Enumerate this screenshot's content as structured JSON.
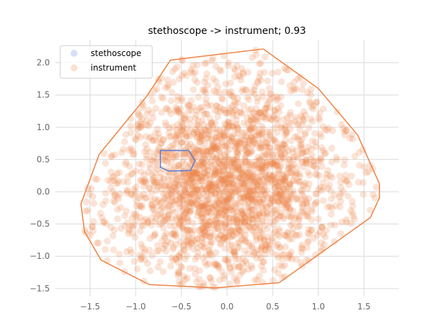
{
  "chart_data": {
    "type": "scatter",
    "title": "stethoscope -> instrument; 0.93",
    "xlabel": "",
    "ylabel": "",
    "xlim": [
      -1.88,
      1.88
    ],
    "ylim": [
      -1.62,
      2.35
    ],
    "grid": true,
    "legend_position": "top-left",
    "x_ticks": [
      -1.5,
      -1.0,
      -0.5,
      0.0,
      0.5,
      1.0,
      1.5
    ],
    "x_tick_labels": [
      "−1.5",
      "−1.0",
      "−0.5",
      "0.0",
      "0.5",
      "1.0",
      "1.5"
    ],
    "y_ticks": [
      -1.5,
      -1.0,
      -0.5,
      0.0,
      0.5,
      1.0,
      1.5,
      2.0
    ],
    "y_tick_labels": [
      "−1.5",
      "−1.0",
      "−0.5",
      "0.0",
      "0.5",
      "1.0",
      "1.5",
      "2.0"
    ],
    "series": [
      {
        "name": "stethoscope",
        "color": "#5b7fd6",
        "hull": [
          [
            -0.73,
            0.64
          ],
          [
            -0.42,
            0.64
          ],
          [
            -0.35,
            0.48
          ],
          [
            -0.4,
            0.33
          ],
          [
            -0.64,
            0.32
          ],
          [
            -0.73,
            0.38
          ]
        ]
      },
      {
        "name": "instrument",
        "color": "#ee8649",
        "hull": [
          [
            -0.62,
            2.04
          ],
          [
            0.38,
            2.21
          ],
          [
            0.4,
            2.21
          ],
          [
            1.0,
            1.6
          ],
          [
            1.43,
            0.88
          ],
          [
            1.67,
            0.12
          ],
          [
            1.67,
            -0.09
          ],
          [
            1.57,
            -0.4
          ],
          [
            0.57,
            -1.41
          ],
          [
            -0.13,
            -1.49
          ],
          [
            -0.85,
            -1.44
          ],
          [
            -1.38,
            -1.06
          ],
          [
            -1.56,
            -0.62
          ],
          [
            -1.6,
            -0.19
          ],
          [
            -1.4,
            0.58
          ],
          [
            -0.88,
            1.48
          ]
        ]
      }
    ]
  }
}
